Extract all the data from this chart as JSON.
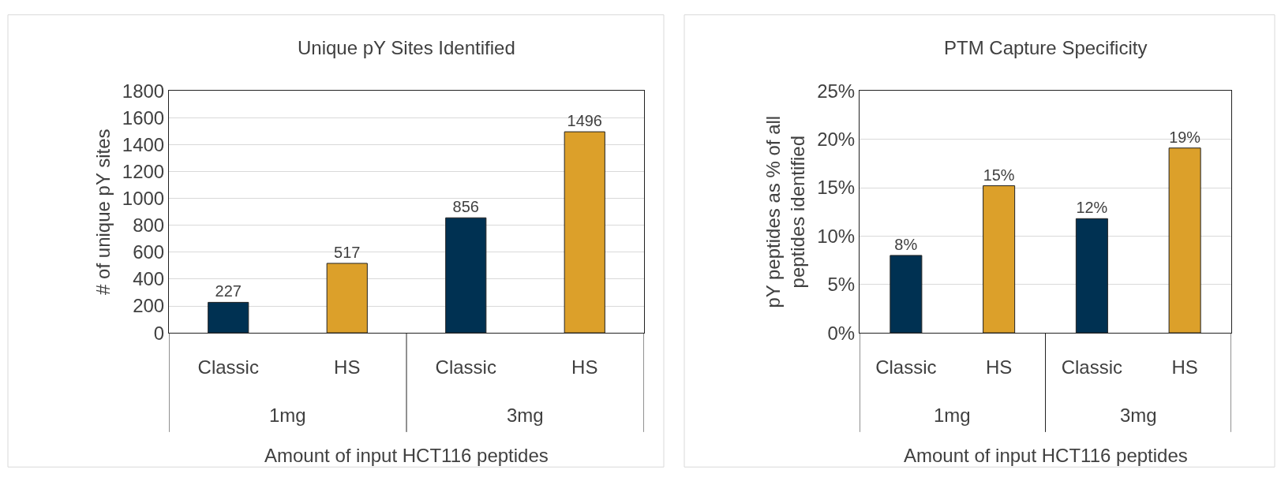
{
  "chart_data": [
    {
      "type": "bar",
      "title": "Unique pY Sites Identified",
      "xlabel": "Amount of input HCT116 peptides",
      "ylabel": "# of unique pY sites",
      "categories": [
        "Classic",
        "HS",
        "Classic",
        "HS"
      ],
      "values": [
        227,
        517,
        856,
        1496
      ],
      "colors": [
        "#003152",
        "#dca02a",
        "#003152",
        "#dca02a"
      ],
      "data_labels": true,
      "ylim": [
        0,
        1800
      ],
      "yticks": [
        0,
        200,
        400,
        600,
        800,
        1000,
        1200,
        1400,
        1600,
        1800
      ],
      "grid": "y",
      "annotations": [
        "1mg",
        "3mg"
      ]
    },
    {
      "type": "bar",
      "title": "PTM Capture Specificity",
      "xlabel": "Amount of input HCT116 peptides",
      "ylabel": "pY peptides as % of all\npeptides identified",
      "categories": [
        "Classic",
        "HS",
        "Classic",
        "HS"
      ],
      "values": [
        8,
        15.2,
        11.8,
        19.1
      ],
      "value_labels": [
        "8%",
        "15%",
        "12%",
        "19%"
      ],
      "colors": [
        "#003152",
        "#dca02a",
        "#003152",
        "#dca02a"
      ],
      "ylim": [
        0,
        25
      ],
      "yticks": [
        {
          "value": 0,
          "label": "0%"
        },
        {
          "value": 5,
          "label": "5%"
        },
        {
          "value": 10,
          "label": "10%"
        },
        {
          "value": 15,
          "label": "15%"
        },
        {
          "value": 20,
          "label": "20%"
        },
        {
          "value": 25,
          "label": "25%"
        }
      ],
      "grid": "y",
      "annotations": [
        "1mg",
        "3mg"
      ]
    }
  ]
}
